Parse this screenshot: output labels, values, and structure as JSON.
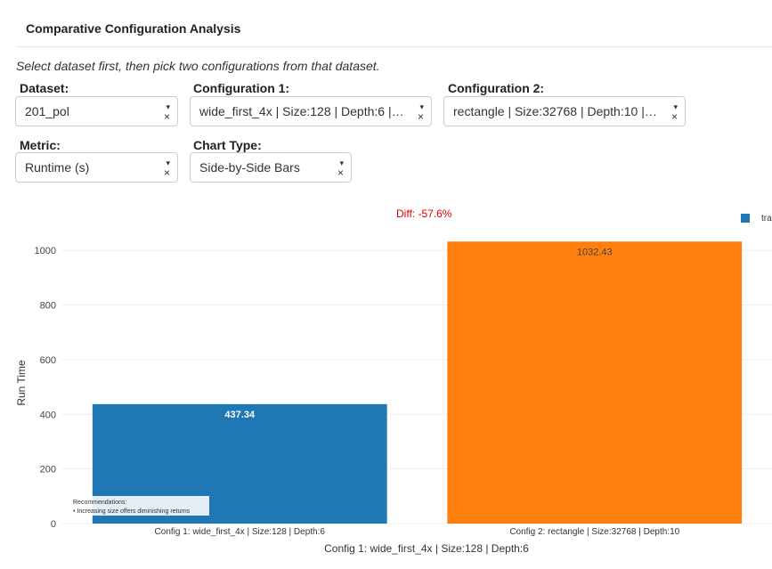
{
  "header": {
    "title": "Comparative Configuration Analysis"
  },
  "instructions": "Select dataset first, then pick two configurations from that dataset.",
  "controls": {
    "dataset": {
      "label": "Dataset:",
      "value": "201_pol"
    },
    "config1": {
      "label": "Configuration 1:",
      "value": "wide_first_4x | Size:128 | Depth:6 | C…"
    },
    "config2": {
      "label": "Configuration 2:",
      "value": "rectangle | Size:32768 | Depth:10 | C…"
    },
    "metric": {
      "label": "Metric:",
      "value": "Runtime (s)"
    },
    "chart_type": {
      "label": "Chart Type:",
      "value": "Side-by-Side Bars"
    },
    "caret_glyph": "▾",
    "clear_glyph": "×"
  },
  "chart_data": {
    "type": "bar",
    "categories": [
      "Config 1: wide_first_4x | Size:128 | Depth:6",
      "Config 2: rectangle | Size:32768 | Depth:10"
    ],
    "values": [
      437.34,
      1032.43
    ],
    "data_labels": [
      "437.34",
      "1032.43"
    ],
    "colors": [
      "#1f77b4",
      "#ff7f0e"
    ],
    "label_colors": [
      "#ffffff",
      "#444444"
    ],
    "ylabel": "Run Time",
    "xlabel": "Config 1: wide_first_4x | Size:128 | Depth:6",
    "ylim": [
      0,
      1030
    ],
    "yticks": [
      0,
      200,
      400,
      600,
      800,
      1000
    ],
    "annotation": "Diff: -57.6%",
    "legend": {
      "entry": "tra",
      "color": "#1f77b4",
      "position": "top-right"
    },
    "recommendations": {
      "title": "Recommendations:",
      "items": [
        "• Increasing size offers diminishing returns"
      ]
    }
  }
}
